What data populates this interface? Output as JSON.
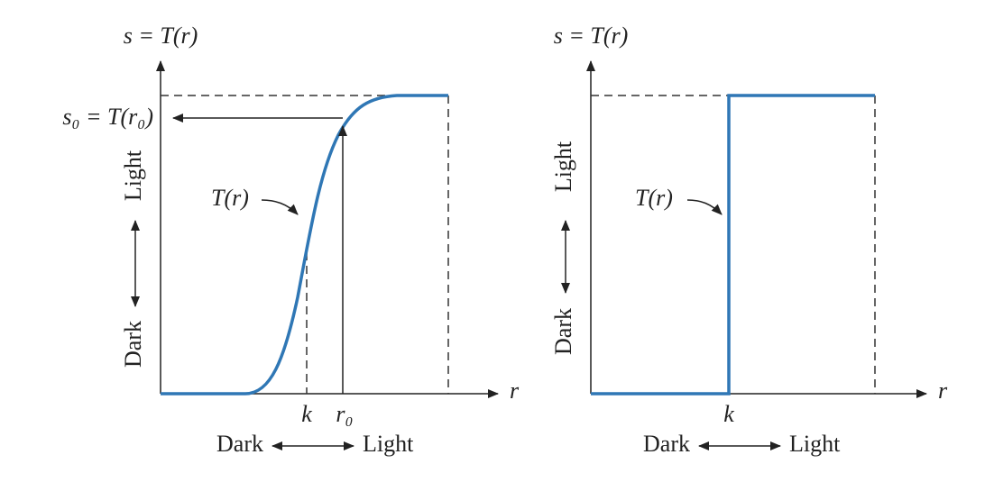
{
  "panels": [
    {
      "y_axis_label": "s = T(r)",
      "s0_label": "s₀ = T(r₀)",
      "curve_label": "T(r)",
      "y_light": "Light",
      "y_dark": "Dark",
      "x_axis_label": "r",
      "k_label": "k",
      "r0_label": "r₀",
      "x_dark": "Dark",
      "x_light": "Light"
    },
    {
      "y_axis_label": "s = T(r)",
      "curve_label": "T(r)",
      "y_light": "Light",
      "y_dark": "Dark",
      "x_axis_label": "r",
      "k_label": "k",
      "x_dark": "Dark",
      "x_light": "Light"
    }
  ]
}
